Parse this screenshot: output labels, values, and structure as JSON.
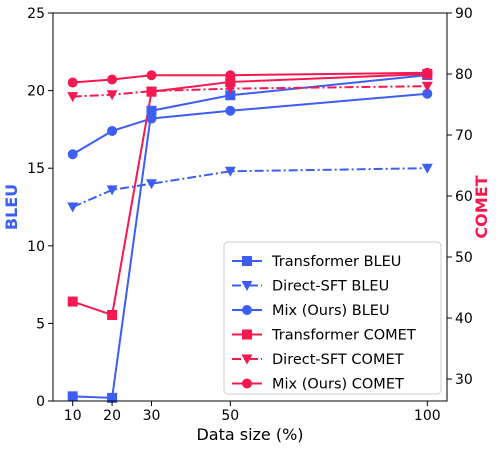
{
  "chart_data": {
    "type": "line",
    "x": [
      10,
      20,
      30,
      50,
      100
    ],
    "xlabel": "Data size (%)",
    "x_ticks": [
      "10",
      "20",
      "30",
      "50",
      "100"
    ],
    "xlim": [
      5,
      105
    ],
    "ylabel_left": "BLEU",
    "ylim_left": [
      0,
      25
    ],
    "y_left_ticks": [
      "0",
      "5",
      "10",
      "15",
      "20",
      "25"
    ],
    "ylabel_right": "COMET",
    "ylim_right": [
      26.4,
      90
    ],
    "y_right_ticks": [
      "30",
      "40",
      "50",
      "60",
      "70",
      "80",
      "90"
    ],
    "grid": false,
    "legend_position": "lower-right",
    "colors": {
      "bleu": "#3d5ef2",
      "comet": "#f5194f"
    },
    "series": [
      {
        "name": "Transformer BLEU",
        "axis": "left",
        "color": "#3d5ef2",
        "marker": "square",
        "linestyle": "solid",
        "values": [
          0.3,
          0.2,
          18.7,
          19.7,
          21.0
        ]
      },
      {
        "name": "Direct-SFT BLEU",
        "axis": "left",
        "color": "#3d5ef2",
        "marker": "triangle-down",
        "linestyle": "dashdot",
        "values": [
          12.5,
          13.6,
          14.0,
          14.8,
          15.0
        ]
      },
      {
        "name": "Mix (Ours) BLEU",
        "axis": "left",
        "color": "#3d5ef2",
        "marker": "circle",
        "linestyle": "solid",
        "values": [
          15.9,
          17.4,
          18.2,
          18.7,
          19.8
        ]
      },
      {
        "name": "Transformer COMET",
        "axis": "right",
        "color": "#f5194f",
        "marker": "square",
        "linestyle": "solid",
        "values": [
          42.7,
          40.5,
          77.1,
          78.7,
          80.0
        ]
      },
      {
        "name": "Direct-SFT COMET",
        "axis": "right",
        "color": "#f5194f",
        "marker": "triangle-down",
        "linestyle": "dashdot",
        "values": [
          76.3,
          76.6,
          77.2,
          77.6,
          78.0
        ]
      },
      {
        "name": "Mix (Ours) COMET",
        "axis": "right",
        "color": "#f5194f",
        "marker": "circle",
        "linestyle": "solid",
        "values": [
          78.6,
          79.1,
          79.8,
          79.8,
          80.2
        ]
      }
    ]
  }
}
